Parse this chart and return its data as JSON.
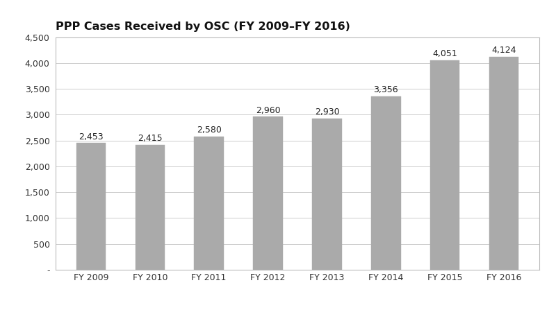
{
  "title": "PPP Cases Received by OSC (FY 2009–FY 2016)",
  "categories": [
    "FY 2009",
    "FY 2010",
    "FY 2011",
    "FY 2012",
    "FY 2013",
    "FY 2014",
    "FY 2015",
    "FY 2016"
  ],
  "values": [
    2453,
    2415,
    2580,
    2960,
    2930,
    3356,
    4051,
    4124
  ],
  "bar_color": "#aaaaaa",
  "bar_edge_color": "#aaaaaa",
  "ylim": [
    0,
    4500
  ],
  "yticks": [
    0,
    500,
    1000,
    1500,
    2000,
    2500,
    3000,
    3500,
    4000,
    4500
  ],
  "ytick_labels": [
    "-",
    "500",
    "1,000",
    "1,500",
    "2,000",
    "2,500",
    "3,000",
    "3,500",
    "4,000",
    "4,500"
  ],
  "background_color": "#ffffff",
  "plot_bg_color": "#ffffff",
  "grid_color": "#cccccc",
  "border_color": "#bbbbbb",
  "title_fontsize": 11.5,
  "tick_fontsize": 9,
  "value_label_fontsize": 9
}
